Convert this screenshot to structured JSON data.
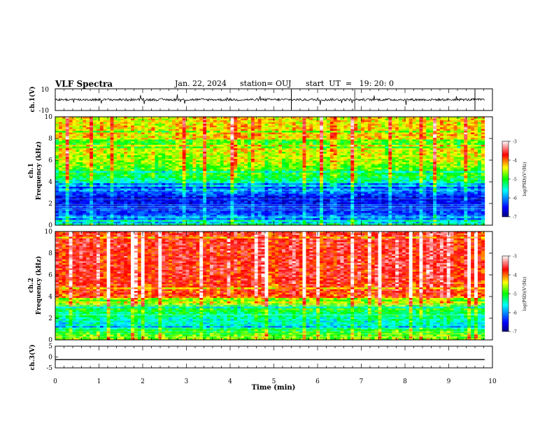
{
  "header": {
    "title": "VLF Spectra",
    "date": "Jan. 22, 2024",
    "station": "station= OUJ",
    "start": "start  UT  =   19: 20: 0"
  },
  "chart_data": [
    {
      "type": "line",
      "panel": "waveform-ch1",
      "ylabel": "ch.1(V)",
      "ylim": [
        -10,
        10
      ],
      "yticks": [
        "10",
        "-10"
      ],
      "series": [
        {
          "values": [
            0,
            0,
            0
          ]
        }
      ],
      "x": [
        0,
        5,
        9.82
      ]
    },
    {
      "type": "heatmap",
      "panel": "spectrogram-ch1",
      "ylabel_line1": "ch.1",
      "ylabel_line2": "Frequency (kHz)",
      "ylim": [
        0,
        10
      ],
      "yticks": [
        "0",
        "2",
        "4",
        "6",
        "8",
        "10"
      ],
      "colorbar": {
        "label": "log(PSD)(V²/Hz)",
        "range": [
          -7,
          -3
        ],
        "ticks": [
          "-3",
          "-4",
          "-5",
          "-6",
          "-7"
        ]
      },
      "level_profile": [
        {
          "freq_khz": 0.3,
          "log_psd": -5.3
        },
        {
          "freq_khz": 1.0,
          "log_psd": -6.3
        },
        {
          "freq_khz": 2.5,
          "log_psd": -6.6
        },
        {
          "freq_khz": 3.5,
          "log_psd": -5.8
        },
        {
          "freq_khz": 4.5,
          "log_psd": -5.1
        },
        {
          "freq_khz": 6.0,
          "log_psd": -4.6
        },
        {
          "freq_khz": 8.5,
          "log_psd": -4.3
        },
        {
          "freq_khz": 10.0,
          "log_psd": -4.4
        }
      ]
    },
    {
      "type": "heatmap",
      "panel": "spectrogram-ch2",
      "ylabel_line1": "ch.2",
      "ylabel_line2": "Frequency (kHz)",
      "ylim": [
        0,
        10
      ],
      "yticks": [
        "0",
        "2",
        "4",
        "6",
        "8",
        "10"
      ],
      "colorbar": {
        "label": "log(PSD)(V²/Hz)",
        "range": [
          -7,
          -3
        ],
        "ticks": [
          "-3",
          "-4",
          "-5",
          "-6",
          "-7"
        ]
      },
      "level_profile": [
        {
          "freq_khz": 0.3,
          "log_psd": -4.7
        },
        {
          "freq_khz": 1.5,
          "log_psd": -5.6
        },
        {
          "freq_khz": 3.0,
          "log_psd": -5.0
        },
        {
          "freq_khz": 4.0,
          "log_psd": -3.9
        },
        {
          "freq_khz": 6.0,
          "log_psd": -3.7
        },
        {
          "freq_khz": 10.0,
          "log_psd": -3.7
        }
      ]
    },
    {
      "type": "line",
      "panel": "waveform-ch3",
      "ylabel": "ch.3(V)",
      "ylim": [
        -5,
        5
      ],
      "yticks": [
        "5",
        "0",
        "-5"
      ],
      "series": [
        {
          "values": [
            -1.2,
            -1.2
          ]
        }
      ],
      "x": [
        0,
        9.82
      ]
    }
  ],
  "xaxis": {
    "label": "Time (min)",
    "range": [
      0,
      10
    ],
    "ticks": [
      "0",
      "1",
      "2",
      "3",
      "4",
      "5",
      "6",
      "7",
      "8",
      "9",
      "10"
    ]
  }
}
